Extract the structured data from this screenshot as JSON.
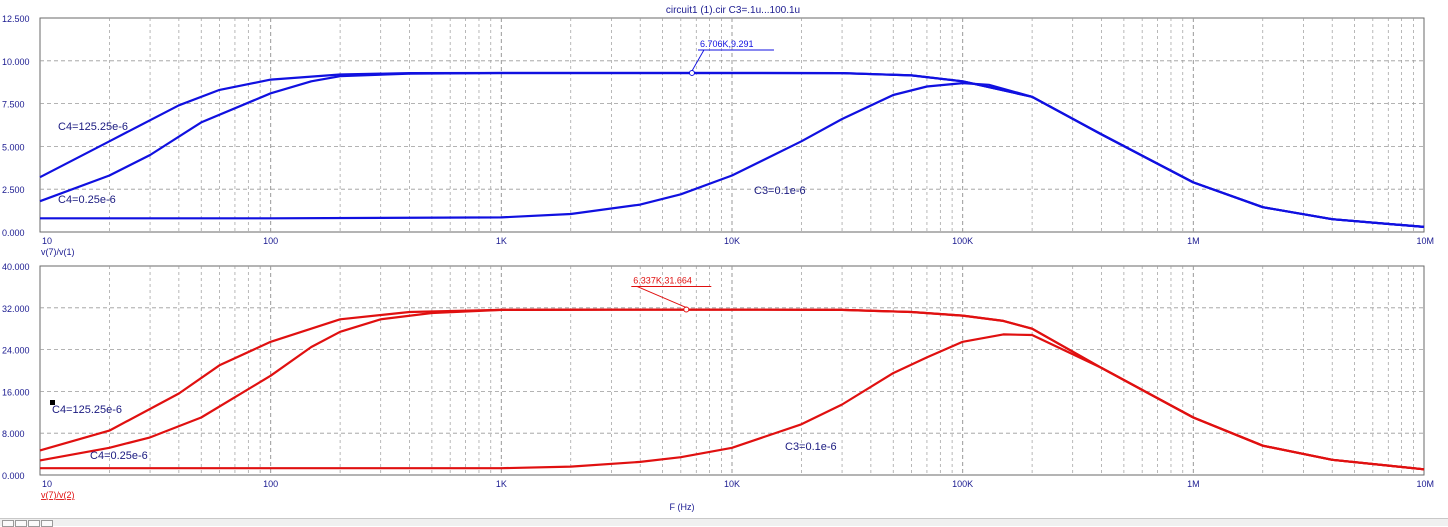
{
  "title": "circuit1 (1).cir C3=.1u...100.1u",
  "x_axis_label": "F (Hz)",
  "x_tick_labels": [
    "10",
    "100",
    "1K",
    "10K",
    "100K",
    "1M",
    "10M"
  ],
  "colors": {
    "upper": "#1010e0",
    "lower": "#e01010",
    "grid": "#9a9a9a",
    "axis_text": "#1a1a90"
  },
  "chart_data": [
    {
      "type": "line",
      "title": "circuit1 (1).cir C3=.1u...100.1u",
      "ylabel": "v(7)/v(1)",
      "xlabel": "",
      "xscale": "log",
      "xlim": [
        10,
        10000000
      ],
      "ylim": [
        0,
        12.5
      ],
      "yticks": [
        0,
        2.5,
        5,
        7.5,
        10,
        12.5
      ],
      "ytick_labels": [
        "0.000",
        "2.500",
        "5.000",
        "7.500",
        "10.000",
        "12.500"
      ],
      "grid": true,
      "series": [
        {
          "name": "C4=125.25e-6",
          "x": [
            10,
            20,
            40,
            60,
            100,
            200,
            400,
            1000,
            2000,
            4000,
            10000,
            30000,
            60000,
            100000,
            200000,
            400000,
            1000000,
            2000000,
            4000000,
            10000000
          ],
          "y": [
            3.2,
            5.3,
            7.4,
            8.3,
            8.9,
            9.2,
            9.28,
            9.29,
            9.29,
            9.29,
            9.29,
            9.28,
            9.15,
            8.8,
            7.9,
            5.7,
            2.9,
            1.45,
            0.75,
            0.3
          ]
        },
        {
          "name": "C4=0.25e-6",
          "x": [
            10,
            20,
            30,
            50,
            100,
            150,
            200,
            400,
            1000,
            4000,
            10000,
            30000,
            60000,
            100000,
            200000,
            400000,
            1000000,
            2000000,
            4000000,
            10000000
          ],
          "y": [
            1.8,
            3.3,
            4.5,
            6.4,
            8.1,
            8.8,
            9.1,
            9.25,
            9.29,
            9.29,
            9.29,
            9.28,
            9.15,
            8.8,
            7.9,
            5.7,
            2.9,
            1.45,
            0.75,
            0.3
          ]
        },
        {
          "name": "C3=0.1e-6",
          "x": [
            10,
            100,
            1000,
            2000,
            4000,
            6000,
            10000,
            20000,
            30000,
            50000,
            70000,
            100000,
            130000,
            200000,
            400000,
            1000000,
            2000000,
            4000000,
            10000000
          ],
          "y": [
            0.8,
            0.8,
            0.85,
            1.05,
            1.6,
            2.2,
            3.3,
            5.3,
            6.6,
            8.0,
            8.5,
            8.7,
            8.6,
            7.9,
            5.7,
            2.9,
            1.45,
            0.75,
            0.3
          ]
        }
      ],
      "annotations": [
        {
          "text": "6.706K,9.291",
          "x": 6706,
          "y": 9.291
        }
      ]
    },
    {
      "type": "line",
      "title": "",
      "ylabel": "v(7)/v(2)",
      "xlabel": "F (Hz)",
      "xscale": "log",
      "xlim": [
        10,
        10000000
      ],
      "ylim": [
        0,
        40
      ],
      "yticks": [
        0,
        8,
        16,
        24,
        32,
        40
      ],
      "ytick_labels": [
        "0.000",
        "8.000",
        "16.000",
        "24.000",
        "32.000",
        "40.000"
      ],
      "grid": true,
      "series": [
        {
          "name": "C4=125.25e-6",
          "x": [
            10,
            20,
            40,
            60,
            100,
            200,
            400,
            1000,
            3000,
            10000,
            30000,
            60000,
            100000,
            150000,
            200000,
            400000,
            1000000,
            2000000,
            4000000,
            10000000
          ],
          "y": [
            4.7,
            8.5,
            15.6,
            21.0,
            25.5,
            29.8,
            31.2,
            31.6,
            31.66,
            31.66,
            31.6,
            31.2,
            30.5,
            29.5,
            28.0,
            20.5,
            11.0,
            5.6,
            2.9,
            1.1
          ]
        },
        {
          "name": "C4=0.25e-6",
          "x": [
            10,
            20,
            30,
            50,
            100,
            150,
            200,
            300,
            500,
            1000,
            3000,
            10000,
            30000,
            60000,
            100000,
            150000,
            200000,
            400000,
            1000000,
            2000000,
            4000000,
            10000000
          ],
          "y": [
            2.8,
            5.2,
            7.2,
            11.0,
            19.0,
            24.5,
            27.4,
            29.8,
            31.0,
            31.6,
            31.66,
            31.66,
            31.6,
            31.2,
            30.5,
            29.5,
            28.0,
            20.5,
            11.0,
            5.6,
            2.9,
            1.1
          ]
        },
        {
          "name": "C3=0.1e-6",
          "x": [
            10,
            100,
            1000,
            2000,
            4000,
            6000,
            10000,
            20000,
            30000,
            50000,
            70000,
            100000,
            150000,
            200000,
            400000,
            1000000,
            2000000,
            4000000,
            10000000
          ],
          "y": [
            1.3,
            1.3,
            1.3,
            1.6,
            2.5,
            3.4,
            5.2,
            9.7,
            13.5,
            19.5,
            22.5,
            25.5,
            26.9,
            26.8,
            20.5,
            11.0,
            5.6,
            2.9,
            1.1
          ]
        }
      ],
      "annotations": [
        {
          "text": "6.337K,31.664",
          "x": 6337,
          "y": 31.664
        }
      ]
    }
  ]
}
